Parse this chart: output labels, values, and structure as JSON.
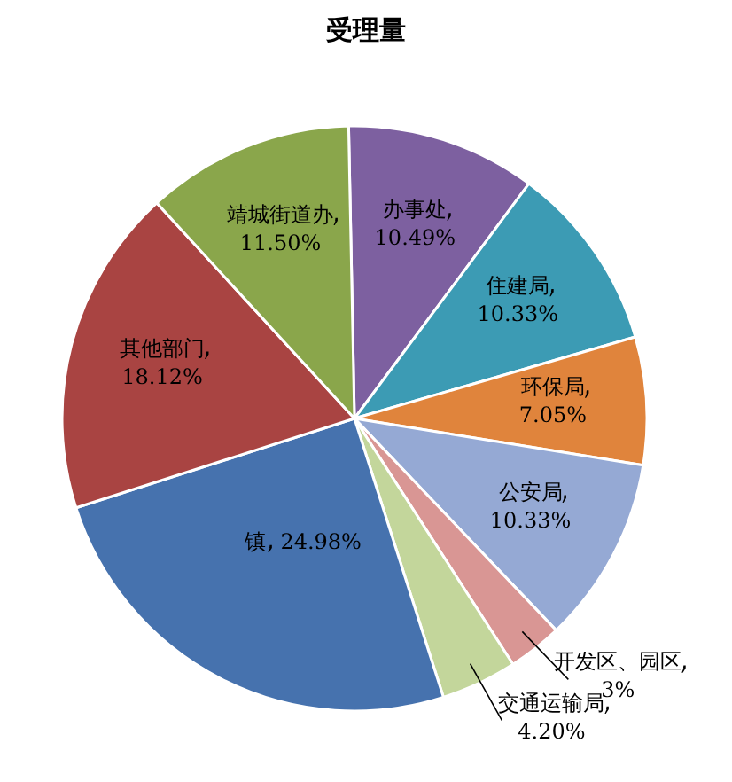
{
  "chart_data": {
    "type": "pie",
    "title": "受理量",
    "categories": [
      "办事处",
      "住建局",
      "环保局",
      "公安局",
      "开发区、园区",
      "交通运输局",
      "镇",
      "其他部门",
      "靖城街道办"
    ],
    "values": [
      10.49,
      10.33,
      7.05,
      10.33,
      3,
      4.2,
      24.98,
      18.12,
      11.5
    ],
    "value_labels": [
      "10.49%",
      "10.33%",
      "7.05%",
      "10.33%",
      "3%",
      "4.20%",
      "24.98%",
      "18.12%",
      "11.50%"
    ],
    "colors": [
      "#7d60a0",
      "#3c9bb4",
      "#e0843c",
      "#95a9d4",
      "#d99694",
      "#c3d69b",
      "#4672ae",
      "#a94442",
      "#8aa64b"
    ]
  }
}
